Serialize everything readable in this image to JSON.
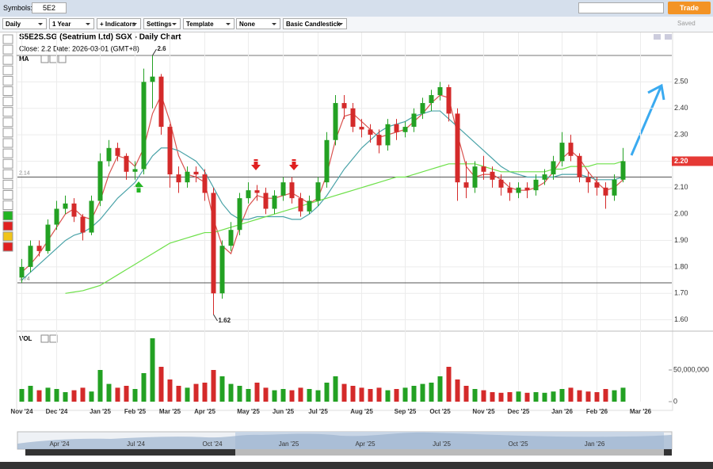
{
  "toolbar": {
    "symbols_label": "Symbols:",
    "symbol": "5E2",
    "trade": "Trade",
    "interval": "Daily",
    "range": "1 Year",
    "indicators": "+ Indicators",
    "settings": "Settings",
    "template": "Template",
    "none": "None",
    "chart_style": "Basic Candlestick",
    "saved": "Saved"
  },
  "chart_data": {
    "type": "candlestick",
    "title": "S5E2S.SG (Seatrium Ltd) SGX - Daily Chart",
    "info": "Close: 2.2  Date: 2026-03-01 (GMT+8)",
    "indicator_label": "MA",
    "volume_label": "VOL",
    "categories": [
      "Nov '24",
      null,
      null,
      null,
      "Dec '24",
      null,
      null,
      null,
      null,
      "Jan '25",
      null,
      null,
      null,
      "Feb '25",
      null,
      null,
      null,
      "Mar '25",
      null,
      null,
      null,
      "Apr '25",
      null,
      null,
      null,
      null,
      "May '25",
      null,
      null,
      null,
      "Jun '25",
      null,
      null,
      null,
      "Jul '25",
      null,
      null,
      null,
      null,
      "Aug '25",
      null,
      null,
      null,
      null,
      "Sep '25",
      null,
      null,
      null,
      "Oct '25",
      null,
      null,
      null,
      null,
      "Nov '25",
      null,
      null,
      null,
      "Dec '25",
      null,
      null,
      null,
      null,
      "Jan '26",
      null,
      null,
      null,
      "Feb '26",
      null,
      null,
      null,
      null,
      "Mar '26"
    ],
    "open": [
      1.76,
      1.8,
      1.88,
      1.86,
      1.96,
      2.02,
      2.04,
      1.99,
      1.93,
      2.05,
      2.2,
      2.25,
      2.22,
      2.16,
      2.17,
      2.5,
      2.52,
      2.33,
      2.15,
      2.12,
      2.16,
      2.15,
      2.08,
      1.7,
      1.88,
      1.94,
      2.06,
      2.09,
      2.08,
      2.02,
      2.07,
      2.12,
      2.06,
      2.01,
      2.05,
      2.12,
      2.28,
      2.42,
      2.4,
      2.33,
      2.32,
      2.3,
      2.26,
      2.34,
      2.31,
      2.33,
      2.38,
      2.42,
      2.45,
      2.48,
      2.38,
      2.12,
      2.1,
      2.18,
      2.16,
      2.13,
      2.1,
      2.08,
      2.1,
      2.09,
      2.13,
      2.15,
      2.2,
      2.27,
      2.22,
      2.14,
      2.12,
      2.1,
      2.07,
      2.13,
      null,
      null
    ],
    "high": [
      1.83,
      1.9,
      1.9,
      1.98,
      2.05,
      2.07,
      2.06,
      2.0,
      2.07,
      2.23,
      2.28,
      2.27,
      2.23,
      2.2,
      2.55,
      2.6,
      2.53,
      2.34,
      2.18,
      2.18,
      2.18,
      2.17,
      2.1,
      1.9,
      1.97,
      2.08,
      2.12,
      2.11,
      2.1,
      2.09,
      2.14,
      2.14,
      2.08,
      2.07,
      2.14,
      2.31,
      2.45,
      2.45,
      2.42,
      2.36,
      2.34,
      2.32,
      2.36,
      2.36,
      2.35,
      2.4,
      2.44,
      2.47,
      2.5,
      2.49,
      2.4,
      2.2,
      2.2,
      2.22,
      2.18,
      2.15,
      2.12,
      2.12,
      2.12,
      2.15,
      2.17,
      2.22,
      2.31,
      2.3,
      2.23,
      2.16,
      2.14,
      2.12,
      2.15,
      2.25,
      null,
      null
    ],
    "low": [
      1.74,
      1.78,
      1.84,
      1.85,
      1.94,
      2.0,
      1.97,
      1.9,
      1.92,
      2.03,
      2.18,
      2.2,
      2.13,
      2.13,
      2.15,
      2.4,
      2.3,
      2.1,
      2.08,
      2.1,
      2.12,
      2.05,
      1.62,
      1.68,
      1.86,
      1.92,
      2.04,
      2.05,
      2.0,
      2.0,
      2.05,
      2.04,
      1.99,
      2.0,
      2.03,
      2.1,
      2.26,
      2.36,
      2.31,
      2.29,
      2.27,
      2.23,
      2.24,
      2.28,
      2.29,
      2.31,
      2.36,
      2.39,
      2.43,
      2.35,
      2.05,
      2.06,
      2.08,
      2.13,
      2.1,
      2.07,
      2.05,
      2.06,
      2.06,
      2.07,
      2.11,
      2.13,
      2.18,
      2.2,
      2.12,
      2.08,
      2.07,
      2.02,
      2.05,
      2.12,
      null,
      null
    ],
    "close": [
      1.8,
      1.88,
      1.86,
      1.96,
      2.02,
      2.04,
      1.99,
      1.93,
      2.05,
      2.2,
      2.25,
      2.22,
      2.16,
      2.17,
      2.5,
      2.52,
      2.33,
      2.15,
      2.12,
      2.16,
      2.15,
      2.08,
      1.7,
      1.88,
      1.94,
      2.06,
      2.09,
      2.08,
      2.02,
      2.07,
      2.12,
      2.06,
      2.01,
      2.05,
      2.12,
      2.28,
      2.42,
      2.4,
      2.33,
      2.32,
      2.3,
      2.26,
      2.34,
      2.31,
      2.33,
      2.38,
      2.42,
      2.45,
      2.48,
      2.38,
      2.12,
      2.1,
      2.18,
      2.16,
      2.13,
      2.1,
      2.08,
      2.1,
      2.09,
      2.13,
      2.15,
      2.2,
      2.27,
      2.22,
      2.14,
      2.12,
      2.1,
      2.07,
      2.13,
      2.2,
      null,
      null
    ],
    "volume": [
      20000000,
      25000000,
      18000000,
      22000000,
      20000000,
      15000000,
      18000000,
      22000000,
      16000000,
      50000000,
      28000000,
      22000000,
      25000000,
      20000000,
      45000000,
      100000000,
      55000000,
      35000000,
      25000000,
      22000000,
      28000000,
      30000000,
      50000000,
      40000000,
      28000000,
      25000000,
      20000000,
      30000000,
      22000000,
      18000000,
      20000000,
      18000000,
      22000000,
      20000000,
      18000000,
      30000000,
      40000000,
      28000000,
      25000000,
      22000000,
      20000000,
      22000000,
      18000000,
      20000000,
      22000000,
      25000000,
      28000000,
      30000000,
      40000000,
      55000000,
      35000000,
      25000000,
      20000000,
      18000000,
      15000000,
      14000000,
      15000000,
      16000000,
      14000000,
      15000000,
      14000000,
      16000000,
      20000000,
      22000000,
      18000000,
      16000000,
      15000000,
      20000000,
      18000000,
      22000000,
      null,
      null
    ],
    "up_color": "#23a123",
    "down_color": "#d42a2a",
    "ma_series": [
      {
        "color": "#d9534f",
        "values": [
          1.78,
          1.81,
          1.85,
          1.9,
          1.95,
          2.0,
          2.02,
          1.99,
          1.98,
          2.05,
          2.15,
          2.22,
          2.21,
          2.18,
          2.25,
          2.38,
          2.45,
          2.35,
          2.22,
          2.15,
          2.14,
          2.12,
          1.98,
          1.88,
          1.85,
          1.95,
          2.03,
          2.07,
          2.06,
          2.06,
          2.07,
          2.08,
          2.06,
          2.04,
          2.06,
          2.15,
          2.28,
          2.37,
          2.38,
          2.35,
          2.32,
          2.29,
          2.3,
          2.31,
          2.32,
          2.35,
          2.38,
          2.42,
          2.45,
          2.44,
          2.3,
          2.18,
          2.14,
          2.15,
          2.15,
          2.13,
          2.1,
          2.09,
          2.09,
          2.1,
          2.12,
          2.16,
          2.21,
          2.24,
          2.21,
          2.16,
          2.12,
          2.09,
          2.1,
          2.13,
          null,
          null
        ]
      },
      {
        "color": "#4aa3a8",
        "values": [
          1.75,
          1.78,
          1.81,
          1.84,
          1.87,
          1.9,
          1.92,
          1.93,
          1.95,
          1.98,
          2.02,
          2.06,
          2.09,
          2.12,
          2.17,
          2.22,
          2.25,
          2.25,
          2.24,
          2.22,
          2.2,
          2.16,
          2.1,
          2.04,
          2.0,
          1.98,
          1.98,
          1.99,
          1.99,
          1.99,
          1.99,
          1.98,
          1.98,
          2.0,
          2.03,
          2.07,
          2.12,
          2.17,
          2.21,
          2.25,
          2.28,
          2.31,
          2.33,
          2.34,
          2.35,
          2.37,
          2.38,
          2.39,
          2.39,
          2.36,
          2.33,
          2.3,
          2.27,
          2.24,
          2.21,
          2.18,
          2.16,
          2.15,
          2.14,
          2.14,
          2.14,
          2.14,
          2.15,
          2.15,
          2.15,
          2.14,
          2.13,
          2.13,
          2.13,
          2.14,
          null,
          null
        ]
      },
      {
        "color": "#6ee04a",
        "values": [
          null,
          null,
          null,
          null,
          null,
          1.7,
          1.705,
          1.71,
          1.72,
          1.73,
          1.75,
          1.77,
          1.79,
          1.81,
          1.83,
          1.85,
          1.87,
          1.89,
          1.9,
          1.91,
          1.92,
          1.93,
          1.93,
          1.94,
          1.95,
          1.96,
          1.97,
          1.98,
          1.99,
          2.0,
          2.01,
          2.02,
          2.03,
          2.04,
          2.05,
          2.06,
          2.07,
          2.08,
          2.09,
          2.1,
          2.11,
          2.12,
          2.13,
          2.14,
          2.14,
          2.15,
          2.16,
          2.17,
          2.18,
          2.19,
          2.19,
          2.19,
          2.19,
          2.18,
          2.17,
          2.16,
          2.16,
          2.16,
          2.16,
          2.16,
          2.16,
          2.17,
          2.17,
          2.18,
          2.18,
          2.18,
          2.19,
          2.19,
          2.19,
          2.2,
          null,
          null
        ]
      }
    ],
    "ylim": [
      1.56,
      2.6
    ],
    "yticks": [
      {
        "value": 1.6,
        "label": "1.60"
      },
      {
        "value": 1.7,
        "label": "1.70"
      },
      {
        "value": 1.8,
        "label": "1.80"
      },
      {
        "value": 1.9,
        "label": "1.90"
      },
      {
        "value": 2.0,
        "label": "2.00"
      },
      {
        "value": 2.1,
        "label": "2.10"
      },
      {
        "value": 2.2,
        "label": "2.20"
      },
      {
        "value": 2.3,
        "label": "2.30"
      },
      {
        "value": 2.4,
        "label": "2.40"
      },
      {
        "value": 2.5,
        "label": "2.50"
      }
    ],
    "volume_ylim": [
      0,
      107500000
    ],
    "volume_yticks": [
      0,
      {
        "value": 50000000,
        "label": "50,000,000"
      }
    ],
    "hlines": [
      2.14,
      1.74
    ],
    "annotations": [
      2.6,
      1.62
    ],
    "last_price": {
      "value": 2.2,
      "label": "2.20"
    },
    "grid": true
  },
  "navigator": {
    "labels": [
      "Apr '24",
      "Jul '24",
      "Oct '24",
      "Jan '25",
      "Apr '25",
      "Jul '25",
      "Oct '25",
      "Jan '26"
    ]
  }
}
